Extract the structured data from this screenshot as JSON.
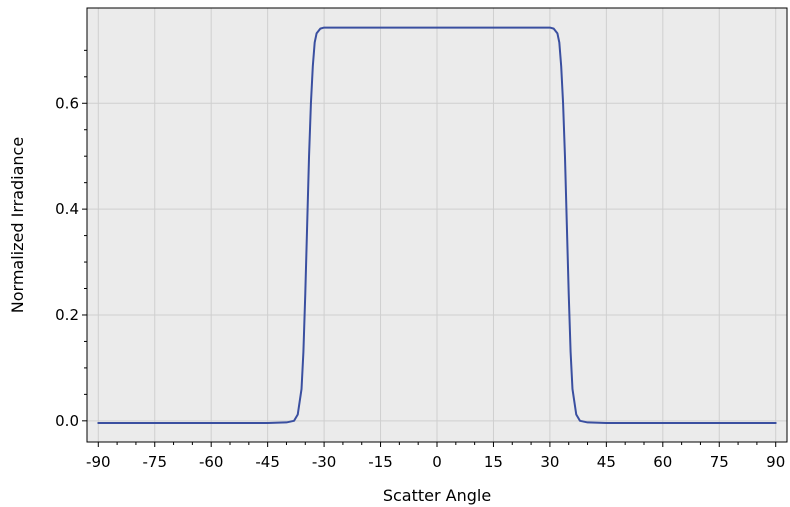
{
  "chart_data": {
    "type": "line",
    "title": "",
    "xlabel": "Scatter Angle",
    "ylabel": "Normalized Irradiance",
    "xlim": [
      -93,
      93
    ],
    "ylim": [
      -0.04,
      0.78
    ],
    "x_ticks": [
      -90,
      -75,
      -60,
      -45,
      -30,
      -15,
      0,
      15,
      30,
      45,
      60,
      75,
      90
    ],
    "x_tick_labels": [
      "-90",
      "-75",
      "-60",
      "-45",
      "-30",
      "-15",
      "0",
      "15",
      "30",
      "45",
      "60",
      "75",
      "90"
    ],
    "y_ticks": [
      0.0,
      0.2,
      0.4,
      0.6
    ],
    "y_tick_labels": [
      "0.0",
      "0.2",
      "0.4",
      "0.6"
    ],
    "grid": true,
    "legend": "none",
    "colors": {
      "plot_background": "#ebebeb",
      "grid": "#cfcfcf",
      "line": "#3a4fa0",
      "axis": "#000000"
    },
    "series": [
      {
        "values_x": [
          -90,
          -60,
          -45,
          -40,
          -38,
          -37,
          -36,
          -35.5,
          -35,
          -34.5,
          -34,
          -33.5,
          -33,
          -32.5,
          -32,
          -31,
          -30,
          0,
          30,
          31,
          32,
          32.5,
          33,
          33.5,
          34,
          34.5,
          35,
          35.5,
          36,
          37,
          38,
          40,
          45,
          60,
          90
        ],
        "values_y": [
          -0.004,
          -0.004,
          -0.004,
          -0.003,
          0.0,
          0.012,
          0.06,
          0.13,
          0.24,
          0.37,
          0.5,
          0.6,
          0.67,
          0.715,
          0.732,
          0.741,
          0.743,
          0.743,
          0.743,
          0.741,
          0.732,
          0.715,
          0.67,
          0.6,
          0.5,
          0.37,
          0.24,
          0.13,
          0.06,
          0.012,
          0.0,
          -0.003,
          -0.004,
          -0.004,
          -0.004
        ]
      }
    ]
  }
}
